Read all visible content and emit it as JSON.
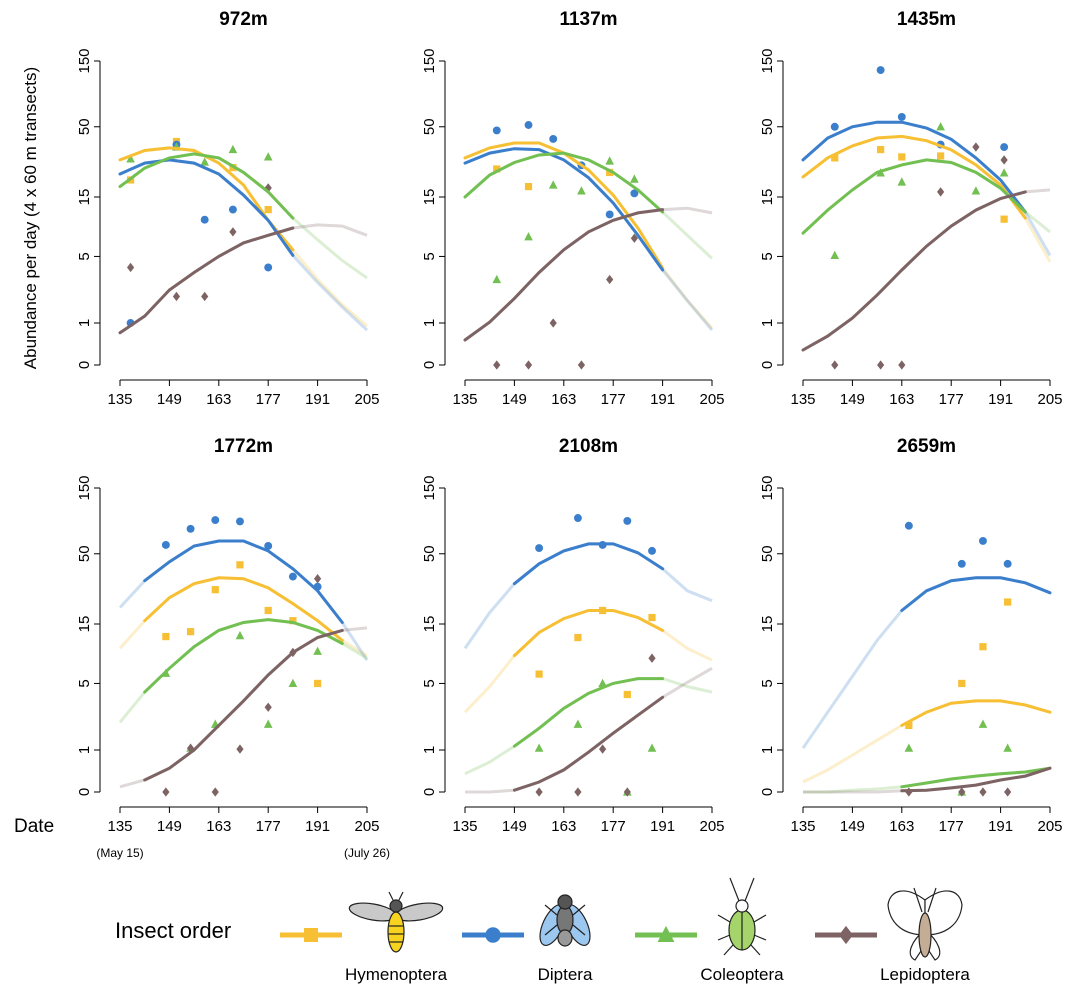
{
  "y_label": "Abundance per day (4 x 60 m transects)",
  "x_label": "Date",
  "legend": {
    "title": "Insect order",
    "items": [
      {
        "name": "Hymenoptera",
        "color": "#f7bf33",
        "marker": "square"
      },
      {
        "name": "Diptera",
        "color": "#3b7fcc",
        "marker": "circle"
      },
      {
        "name": "Coleoptera",
        "color": "#72bf52",
        "marker": "triangle"
      },
      {
        "name": "Lepidoptera",
        "color": "#7d6363",
        "marker": "diamond"
      }
    ]
  },
  "chart_data": [
    {
      "type": "scatter",
      "title": "972m",
      "xlim": [
        135,
        205
      ],
      "xticks": [
        135,
        149,
        163,
        177,
        191,
        205
      ],
      "ylim": [
        0,
        150
      ],
      "yticks": [
        0,
        1,
        5,
        15,
        50,
        150
      ],
      "yscale": "log1p",
      "x": [
        138,
        151,
        159,
        167,
        177
      ],
      "fit_x": [
        135,
        142,
        149,
        156,
        163,
        170,
        177,
        184,
        191,
        198,
        205
      ],
      "series": [
        {
          "values": [
            20.2,
            39,
            null,
            25,
            12
          ],
          "fit": [
            28.5,
            33.5,
            35,
            33.5,
            27,
            18.5,
            9.9,
            5.7,
            3.1,
            1.7,
            0.9
          ],
          "solid_range": [
            135,
            184
          ]
        },
        {
          "values": [
            1,
            37,
            10,
            12,
            4
          ],
          "fit": [
            22.4,
            27,
            28.5,
            27,
            22.4,
            15.5,
            9.9,
            5.1,
            2.9,
            1.6,
            0.78
          ],
          "solid_range": [
            135,
            184
          ]
        },
        {
          "values": [
            29,
            35.5,
            27.5,
            34,
            30
          ],
          "fit": [
            18,
            24.8,
            29.5,
            31.6,
            29.5,
            23,
            16.4,
            10.3,
            6.9,
            4.6,
            3.2
          ],
          "solid_range": [
            135,
            184
          ]
        },
        {
          "values": [
            4,
            2.1,
            2.1,
            8,
            17.6
          ],
          "fit": [
            0.7,
            1.24,
            2.45,
            3.6,
            5,
            6.5,
            7.5,
            8.6,
            9.1,
            8.9,
            7.5
          ],
          "solid_range": [
            135,
            184
          ]
        }
      ]
    },
    {
      "type": "scatter",
      "title": "1137m",
      "xlim": [
        135,
        205
      ],
      "xticks": [
        135,
        149,
        163,
        177,
        191,
        205
      ],
      "ylim": [
        0,
        150
      ],
      "yticks": [
        0,
        1,
        5,
        15,
        50,
        150
      ],
      "yscale": "log1p",
      "x": [
        144,
        153,
        160,
        168,
        176,
        183
      ],
      "fit_x": [
        135,
        142,
        149,
        156,
        163,
        170,
        177,
        184,
        191,
        198,
        205
      ],
      "series": [
        {
          "values": [
            24.4,
            18,
            null,
            null,
            23,
            null
          ],
          "fit": [
            29.5,
            35,
            38,
            38,
            32,
            24,
            15.5,
            8.6,
            3.95,
            1.9,
            0.84
          ],
          "solid_range": [
            135,
            191
          ]
        },
        {
          "values": [
            47,
            51.5,
            40.7,
            26,
            11,
            16
          ],
          "fit": [
            27,
            32,
            34.5,
            34,
            28.5,
            21,
            13.5,
            7.5,
            3.8,
            1.9,
            0.78
          ],
          "solid_range": [
            135,
            191
          ]
        },
        {
          "values": [
            3.1,
            7.3,
            18.5,
            16.7,
            28,
            20.5
          ],
          "fit": [
            15,
            22,
            27.3,
            31,
            32,
            28.5,
            23,
            17,
            11.5,
            7.5,
            4.8
          ],
          "solid_range": [
            135,
            191
          ]
        },
        {
          "values": [
            0,
            0,
            1,
            0,
            3.1,
            7.1
          ],
          "fit": [
            0.51,
            1.03,
            2,
            3.6,
            5.7,
            8,
            9.9,
            11.3,
            12,
            12.3,
            11.3
          ],
          "solid_range": [
            135,
            191
          ]
        }
      ]
    },
    {
      "type": "scatter",
      "title": "1435m",
      "xlim": [
        135,
        205
      ],
      "xticks": [
        135,
        149,
        163,
        177,
        191,
        205
      ],
      "ylim": [
        0,
        150
      ],
      "yticks": [
        0,
        1,
        5,
        15,
        50,
        150
      ],
      "yscale": "log1p",
      "x": [
        144,
        157,
        163,
        174,
        184,
        192
      ],
      "fit_x": [
        135,
        142,
        149,
        156,
        163,
        170,
        177,
        184,
        191,
        198,
        205
      ],
      "series": [
        {
          "values": [
            29.5,
            34,
            30,
            30.5,
            null,
            10.1
          ],
          "fit": [
            21.3,
            29.5,
            36.2,
            41.4,
            42.5,
            39.5,
            33.8,
            26.2,
            18.5,
            10.3,
            4.5
          ],
          "solid_range": [
            135,
            198
          ]
        },
        {
          "values": [
            50,
            129,
            59,
            37,
            null,
            35.5
          ],
          "fit": [
            28.5,
            41.4,
            50,
            54,
            54,
            49,
            40.5,
            29.5,
            20.2,
            11.5,
            5.1
          ],
          "solid_range": [
            135,
            198
          ]
        },
        {
          "values": [
            5.1,
            22.8,
            19.5,
            50,
            16.7,
            22.8
          ],
          "fit": [
            7.8,
            11.9,
            17,
            23,
            26.2,
            28.5,
            27.3,
            23,
            17.5,
            11.5,
            8
          ],
          "solid_range": [
            135,
            198
          ]
        },
        {
          "values": [
            0,
            0,
            0,
            16.4,
            35.5,
            28.5
          ],
          "fit": [
            0.28,
            0.61,
            1.17,
            2.17,
            3.8,
            6.1,
            8.9,
            11.9,
            14.6,
            16.4,
            17
          ],
          "solid_range": [
            135,
            198
          ]
        }
      ]
    },
    {
      "type": "scatter",
      "title": "1772m",
      "xlim": [
        135,
        205
      ],
      "xticks": [
        135,
        149,
        163,
        177,
        191,
        205
      ],
      "ylim": [
        0,
        150
      ],
      "yticks": [
        0,
        1,
        5,
        15,
        50,
        150
      ],
      "yscale": "log1p",
      "notes": [
        {
          "x": 135,
          "label": "(May 15)"
        },
        {
          "x": 205,
          "label": "(July 26)"
        }
      ],
      "x": [
        148,
        155,
        162,
        169,
        177,
        184,
        191
      ],
      "fit_x": [
        135,
        142,
        149,
        156,
        163,
        170,
        177,
        184,
        191,
        198,
        205
      ],
      "series": [
        {
          "values": [
            12,
            13.1,
            27.2,
            41.5,
            19,
            15.9,
            5
          ],
          "fit": [
            9.7,
            15.9,
            23.7,
            30.1,
            33.3,
            32.8,
            28.1,
            21.4,
            15.9,
            11.2,
            8.5
          ],
          "solid_range": [
            142,
            198
          ]
        },
        {
          "values": [
            58,
            76,
            88,
            86,
            57,
            34,
            28.6
          ],
          "fit": [
            20,
            31.7,
            43.7,
            57,
            62,
            62,
            52.5,
            38.8,
            26.7,
            15.4,
            7.8
          ],
          "solid_range": [
            142,
            198
          ]
        },
        {
          "values": [
            6.1,
            1.06,
            2.06,
            12.2,
            2.06,
            5,
            9.2
          ],
          "fit": [
            2.16,
            4.2,
            6.7,
            10,
            13.4,
            15.4,
            16.2,
            15.4,
            13.4,
            10.6,
            8.1
          ],
          "solid_range": [
            142,
            198
          ]
        },
        {
          "values": [
            0,
            1.06,
            0,
            1.03,
            3.05,
            9,
            32.8
          ],
          "fit": [
            0.09,
            0.22,
            0.48,
            1,
            2,
            3.5,
            5.9,
            9,
            11.8,
            13.4,
            14
          ],
          "solid_range": [
            142,
            198
          ]
        }
      ]
    },
    {
      "type": "scatter",
      "title": "2108m",
      "xlim": [
        135,
        205
      ],
      "xticks": [
        135,
        149,
        163,
        177,
        191,
        205
      ],
      "ylim": [
        0,
        150
      ],
      "yticks": [
        0,
        1,
        5,
        15,
        50,
        150
      ],
      "yscale": "log1p",
      "x": [
        156,
        167,
        174,
        181,
        188
      ],
      "fit_x": [
        135,
        142,
        149,
        156,
        163,
        170,
        177,
        184,
        191,
        198,
        205
      ],
      "series": [
        {
          "values": [
            6,
            11.8,
            19,
            4,
            16.8
          ],
          "fit": [
            2.73,
            4.7,
            8.5,
            12.9,
            16.5,
            19,
            19,
            16.8,
            13.4,
            9.7,
            7.8
          ],
          "solid_range": [
            149,
            191
          ]
        },
        {
          "values": [
            55,
            91,
            58,
            86.7,
            52.5
          ],
          "fit": [
            9.7,
            18.3,
            30.1,
            42.2,
            52.5,
            59,
            59,
            50.8,
            38.8,
            26.7,
            22.5
          ],
          "solid_range": [
            149,
            191
          ]
        },
        {
          "values": [
            1.06,
            2.06,
            5,
            0,
            1.06
          ],
          "fit": [
            0.35,
            0.64,
            1.13,
            1.86,
            2.98,
            4.1,
            5,
            5.5,
            5.5,
            4.7,
            4.2
          ],
          "solid_range": [
            149,
            191
          ]
        },
        {
          "values": [
            0,
            0,
            1.03,
            0,
            8.1
          ],
          "fit": [
            0,
            0,
            0.03,
            0.18,
            0.44,
            0.93,
            1.64,
            2.55,
            3.77,
            5.1,
            6.7
          ],
          "solid_range": [
            149,
            191
          ]
        }
      ]
    },
    {
      "type": "scatter",
      "title": "2659m",
      "xlim": [
        135,
        205
      ],
      "xticks": [
        135,
        149,
        163,
        177,
        191,
        205
      ],
      "ylim": [
        0,
        150
      ],
      "yticks": [
        0,
        1,
        5,
        15,
        50,
        150
      ],
      "yscale": "log1p",
      "x": [
        165,
        180,
        186,
        193
      ],
      "fit_x": [
        135,
        142,
        149,
        156,
        163,
        170,
        177,
        184,
        191,
        198,
        205
      ],
      "series": [
        {
          "values": [
            2,
            5,
            10,
            22
          ],
          "fit": [
            0.18,
            0.44,
            0.84,
            1.35,
            2,
            2.73,
            3.33,
            3.5,
            3.5,
            3.2,
            2.73
          ],
          "solid_range": [
            163,
            205
          ]
        },
        {
          "values": [
            80,
            42.2,
            62,
            42.2
          ],
          "fit": [
            1.06,
            2.73,
            5.74,
            11.2,
            19,
            26.7,
            31.7,
            33.3,
            33.3,
            30.6,
            25.8
          ],
          "solid_range": [
            163,
            205
          ]
        },
        {
          "values": [
            1.06,
            0,
            2.06,
            1.06
          ],
          "fit": [
            0,
            0,
            0.03,
            0.05,
            0.09,
            0.16,
            0.24,
            0.3,
            0.35,
            0.39,
            0.48
          ],
          "solid_range": [
            163,
            205
          ]
        },
        {
          "values": [
            0,
            0,
            0,
            0
          ],
          "fit": [
            0,
            0,
            0,
            0,
            0.02,
            0.03,
            0.07,
            0.12,
            0.22,
            0.3,
            0.48
          ],
          "solid_range": [
            163,
            205
          ]
        }
      ]
    }
  ]
}
